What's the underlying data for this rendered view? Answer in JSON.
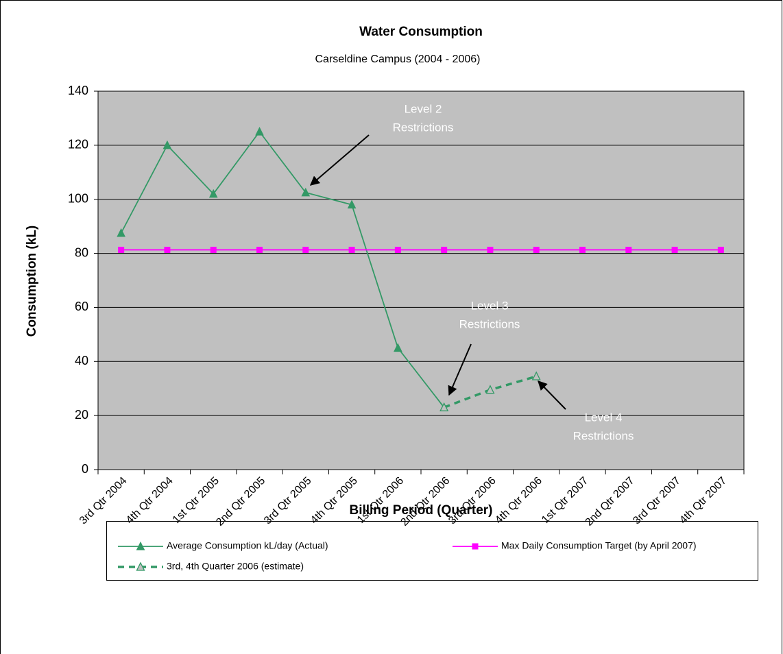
{
  "chart_data": {
    "type": "line",
    "title": "Water Consumption",
    "subtitle": "Carseldine Campus (2004 - 2006)",
    "x_label": "Billing Period (Quarter)",
    "y_label": "Consumption (kL)",
    "categories": [
      "3rd Qtr 2004",
      "4th Qtr 2004",
      "1st Qtr 2005",
      "2nd Qtr 2005",
      "3rd Qtr 2005",
      "4th Qtr 2005",
      "1st Qtr 2006",
      "2nd Qtr 2006",
      "3rd Qtr 2006",
      "4th Qtr 2006",
      "1st Qtr 2007",
      "2nd Qtr 2007",
      "3rd Qtr 2007",
      "4th Qtr 2007"
    ],
    "series": [
      {
        "name": "Average Consumption kL/day (Actual)",
        "color": "#339966",
        "marker": "triangle",
        "dashed": false,
        "values": [
          87.5,
          120,
          102,
          125,
          102.5,
          98,
          45,
          23,
          null,
          null,
          null,
          null,
          null,
          null
        ]
      },
      {
        "name": "Max Daily Consumption Target (by April 2007)",
        "color": "#ff00ff",
        "marker": "square",
        "dashed": false,
        "values": [
          81.3,
          81.3,
          81.3,
          81.3,
          81.3,
          81.3,
          81.3,
          81.3,
          81.3,
          81.3,
          81.3,
          81.3,
          81.3,
          81.3
        ]
      },
      {
        "name": "3rd, 4th Quarter 2006 (estimate)",
        "color": "#339966",
        "marker": "triangle-open",
        "dashed": true,
        "values": [
          null,
          null,
          null,
          null,
          null,
          null,
          null,
          23,
          29.5,
          34.5,
          null,
          null,
          null,
          null
        ]
      }
    ],
    "ylim": [
      0,
      140
    ],
    "yticks": [
      0,
      20,
      40,
      60,
      80,
      100,
      120,
      140
    ],
    "grid": true,
    "plot_background": "#c0c0c0",
    "legend": "bottom",
    "annotations": [
      [
        "Level 2",
        "Restrictions"
      ],
      [
        "Level 3",
        "Restrictions"
      ],
      [
        "Level 4",
        "Restrictions"
      ]
    ]
  }
}
